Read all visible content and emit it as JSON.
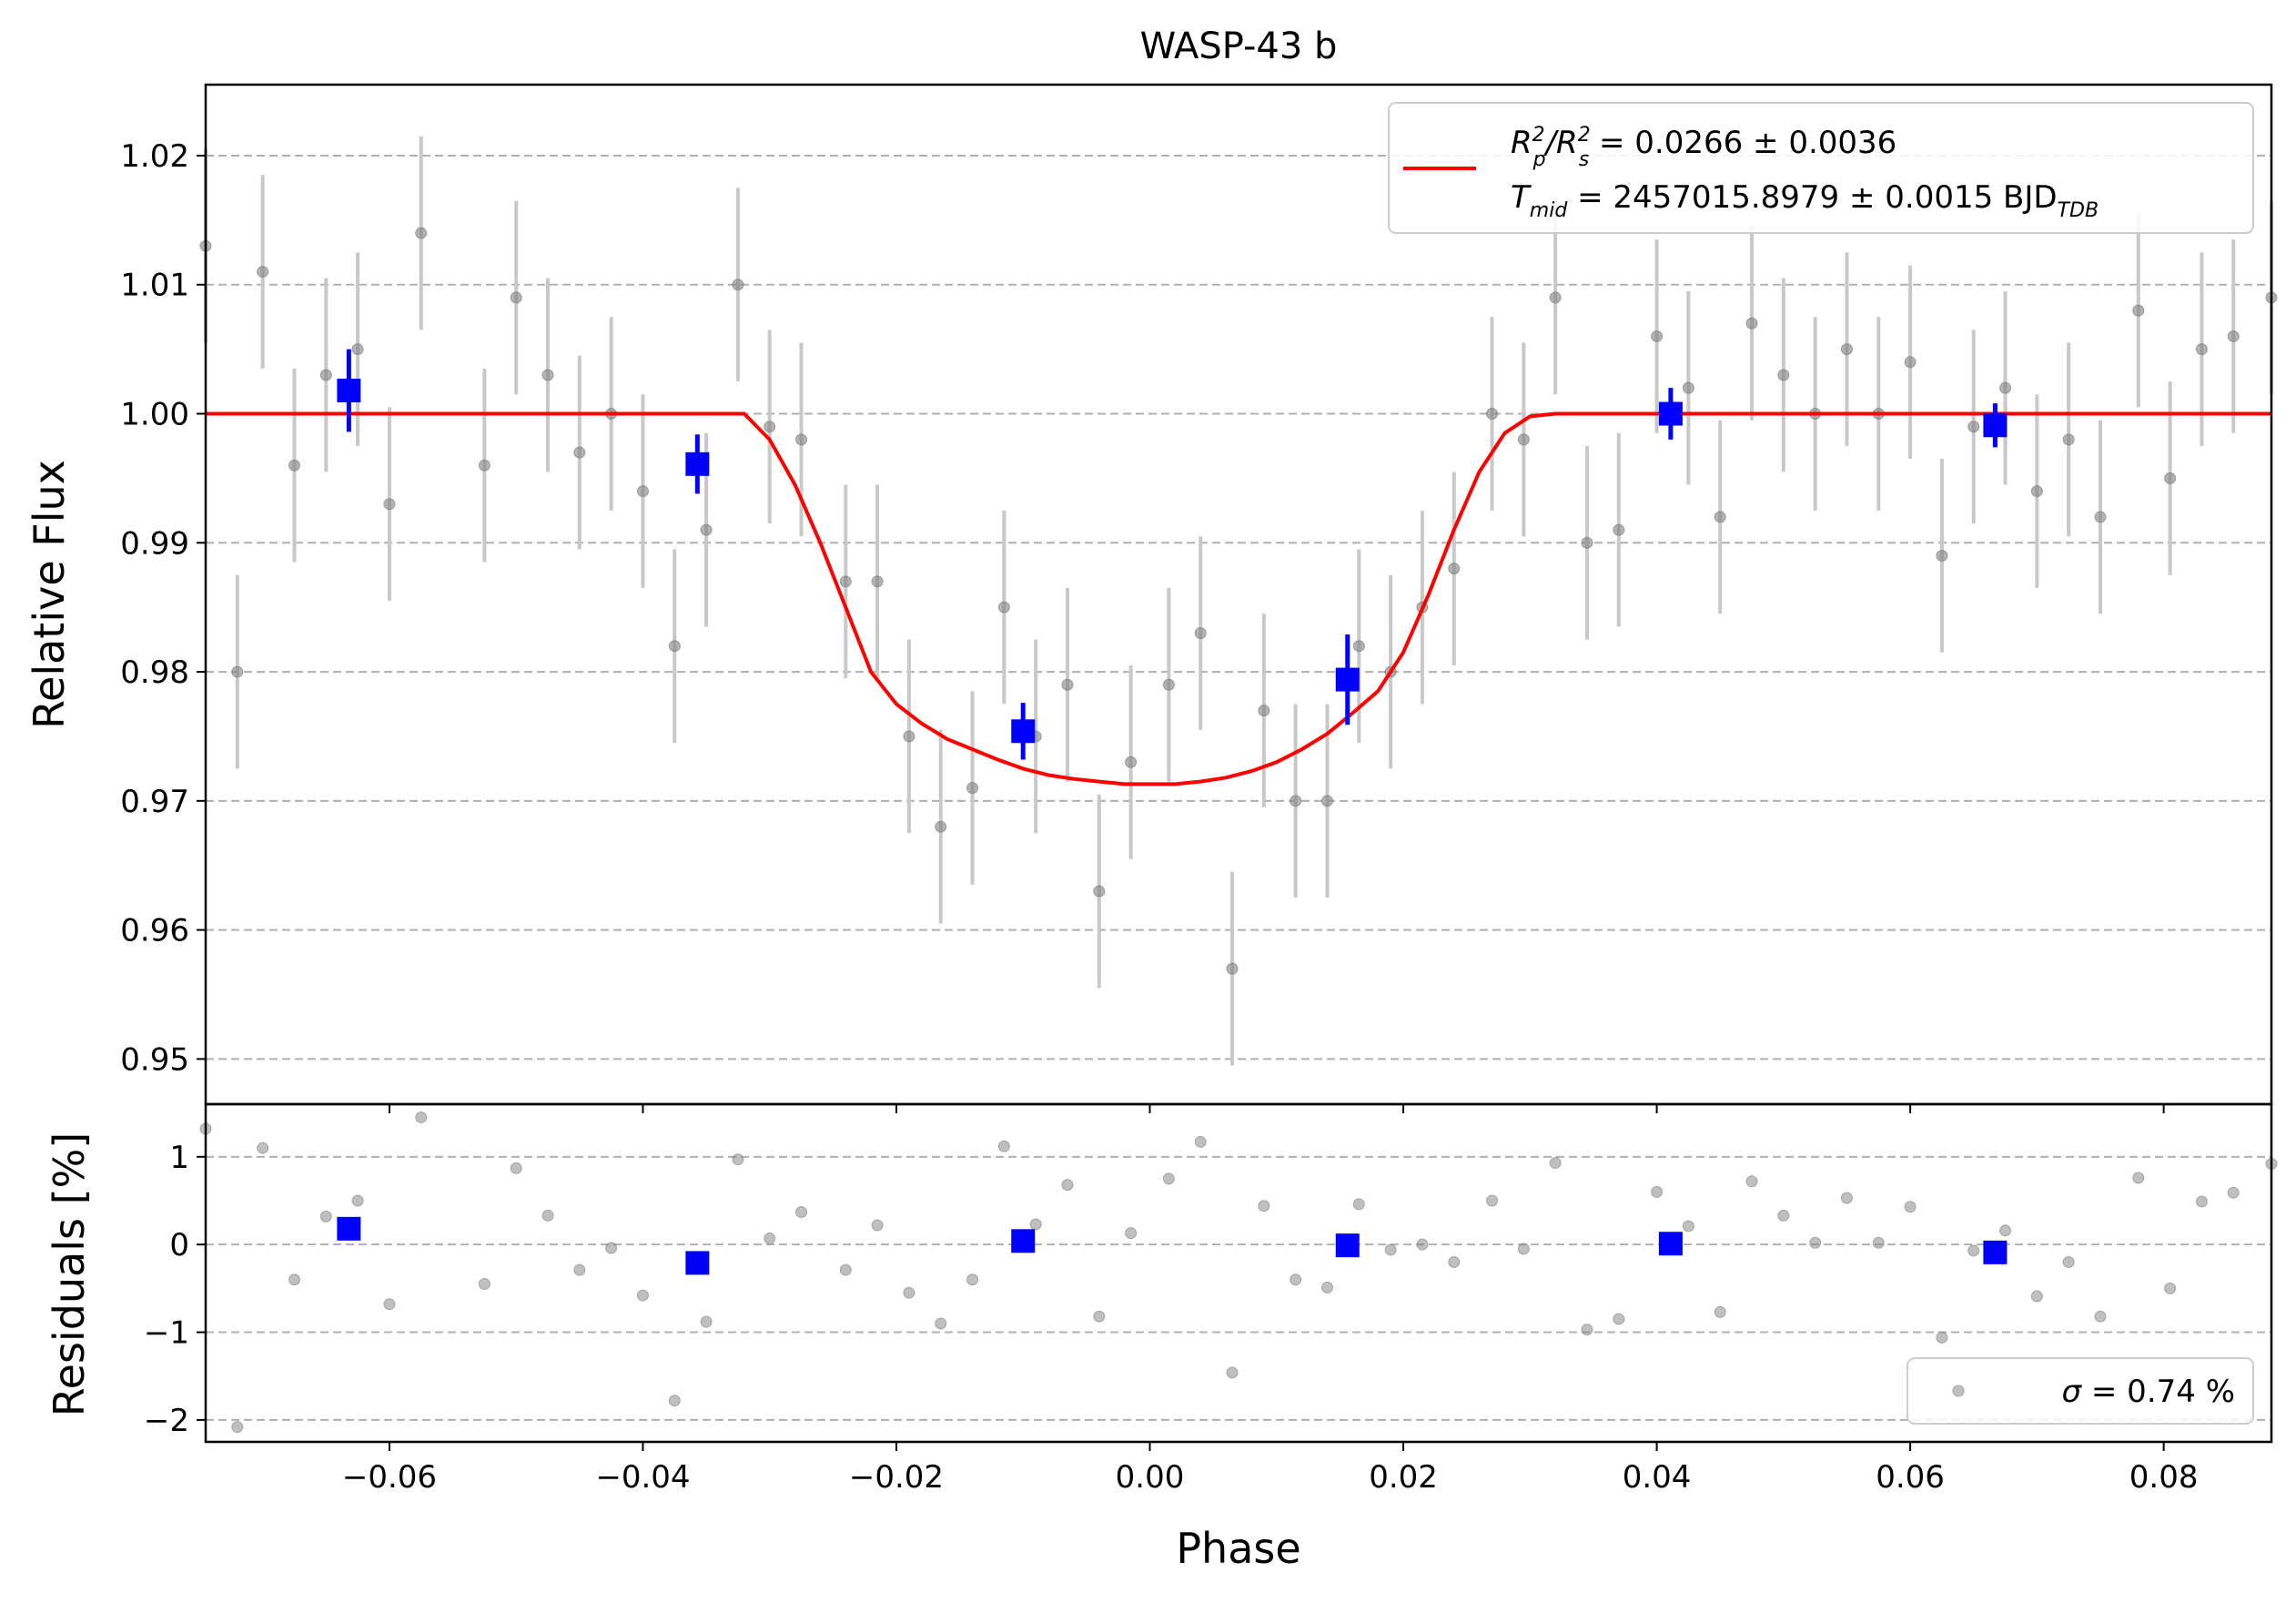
{
  "chart_data": [
    {
      "type": "scatter",
      "title": "WASP-43 b",
      "xlabel": "",
      "ylabel": "Relative Flux",
      "xlim": [
        -0.0745,
        0.0885
      ],
      "ylim": [
        0.9465,
        1.0255
      ],
      "x_ticks": [
        -0.06,
        -0.04,
        -0.02,
        0.0,
        0.02,
        0.04,
        0.06,
        0.08
      ],
      "y_ticks": [
        0.95,
        0.96,
        0.97,
        0.98,
        0.99,
        1.0,
        1.01,
        1.02
      ],
      "y_tick_labels": [
        "0.95",
        "0.96",
        "0.97",
        "0.98",
        "0.99",
        "1.00",
        "1.01",
        "1.02"
      ],
      "grid": "horizontal dashed",
      "legend_position": "upper right",
      "series": [
        {
          "kind": "data",
          "color": "#808080",
          "x": [
            -0.0745,
            -0.072,
            -0.07,
            -0.0675,
            -0.065,
            -0.0625,
            -0.06,
            -0.0575,
            -0.0525,
            -0.05,
            -0.0475,
            -0.045,
            -0.0425,
            -0.04,
            -0.0375,
            -0.035,
            -0.0325,
            -0.03,
            -0.0275,
            -0.024,
            -0.0215,
            -0.019,
            -0.0165,
            -0.014,
            -0.0115,
            -0.009,
            -0.0065,
            -0.004,
            -0.0015,
            0.0015,
            0.004,
            0.0065,
            0.009,
            0.0115,
            0.014,
            0.0165,
            0.019,
            0.0215,
            0.024,
            0.027,
            0.0295,
            0.032,
            0.0345,
            0.037,
            0.04,
            0.0425,
            0.045,
            0.0475,
            0.05,
            0.0525,
            0.055,
            0.0575,
            0.06,
            0.0625,
            0.065,
            0.0675,
            0.07,
            0.0725,
            0.075,
            0.078,
            0.0805,
            0.083,
            0.0855,
            0.0885
          ],
          "y": [
            1.013,
            0.98,
            1.011,
            0.996,
            1.003,
            1.005,
            0.993,
            1.014,
            0.996,
            1.009,
            1.003,
            0.997,
            1.0,
            0.994,
            0.982,
            0.991,
            1.01,
            0.999,
            0.998,
            0.987,
            0.987,
            0.975,
            0.968,
            0.971,
            0.985,
            0.975,
            0.979,
            0.963,
            0.973,
            0.979,
            0.983,
            0.957,
            0.977,
            0.97,
            0.97,
            0.982,
            0.98,
            0.985,
            0.988,
            1.0,
            0.998,
            1.009,
            0.99,
            0.991,
            1.006,
            1.002,
            0.992,
            1.007,
            1.003,
            1.0,
            1.005,
            1.0,
            1.004,
            0.989,
            0.999,
            1.002,
            0.994,
            0.998,
            0.992,
            1.008,
            0.995,
            1.005,
            1.006,
            1.009
          ],
          "error": 0.0075
        },
        {
          "kind": "binned",
          "color": "#0000ff",
          "x": [
            -0.0632,
            -0.0357,
            -0.01,
            0.0156,
            0.0411,
            0.0667
          ],
          "y": [
            1.0018,
            0.9961,
            0.9754,
            0.9794,
            1.0,
            0.9991
          ],
          "error": [
            0.0032,
            0.0023,
            0.0022,
            0.0035,
            0.002,
            0.0017
          ]
        },
        {
          "kind": "model",
          "color": "#ff0000",
          "x": [
            -0.0745,
            -0.032,
            -0.03,
            -0.028,
            -0.026,
            -0.024,
            -0.022,
            -0.02,
            -0.018,
            -0.016,
            -0.014,
            -0.012,
            -0.01,
            -0.008,
            -0.006,
            -0.004,
            -0.002,
            0.0,
            0.002,
            0.004,
            0.006,
            0.008,
            0.01,
            0.012,
            0.014,
            0.016,
            0.018,
            0.02,
            0.022,
            0.024,
            0.026,
            0.028,
            0.03,
            0.032,
            0.0885
          ],
          "y": [
            1.0,
            1.0,
            0.998,
            0.9945,
            0.99,
            0.985,
            0.98,
            0.9775,
            0.976,
            0.9748,
            0.974,
            0.9732,
            0.9725,
            0.972,
            0.9717,
            0.9715,
            0.9713,
            0.9713,
            0.9713,
            0.9715,
            0.9718,
            0.9723,
            0.973,
            0.974,
            0.9752,
            0.9768,
            0.9785,
            0.9815,
            0.986,
            0.991,
            0.9955,
            0.9985,
            0.9998,
            1.0,
            1.0
          ]
        }
      ],
      "legend": {
        "line1": {
          "main": "R",
          "sub1": "p",
          "sup1": "2",
          "mid": "/R",
          "sub2": "s",
          "sup2": "2",
          "tail": " = 0.0266 ± 0.0036"
        },
        "line2": {
          "main": "T",
          "sub": "mid",
          "tail": " = 2457015.8979 ± 0.0015 BJD",
          "unit_sub": "TDB"
        }
      }
    },
    {
      "type": "scatter",
      "xlabel": "Phase",
      "ylabel": "Residuals [%]",
      "xlim": [
        -0.0745,
        0.0885
      ],
      "ylim": [
        -2.25,
        1.6
      ],
      "x_ticks": [
        -0.06,
        -0.04,
        -0.02,
        0.0,
        0.02,
        0.04,
        0.06,
        0.08
      ],
      "x_tick_labels": [
        "−0.06",
        "−0.04",
        "−0.02",
        "0.00",
        "0.02",
        "0.04",
        "0.06",
        "0.08"
      ],
      "y_ticks": [
        -2,
        -1,
        0,
        1
      ],
      "y_tick_labels": [
        "−2",
        "−1",
        "0",
        "1"
      ],
      "grid": "horizontal dashed",
      "legend_position": "lower right",
      "series": [
        {
          "kind": "residuals",
          "color": "#808080",
          "x": [
            -0.0745,
            -0.072,
            -0.07,
            -0.0675,
            -0.065,
            -0.0625,
            -0.06,
            -0.0575,
            -0.0525,
            -0.05,
            -0.0475,
            -0.045,
            -0.0425,
            -0.04,
            -0.0375,
            -0.035,
            -0.0325,
            -0.03,
            -0.0275,
            -0.024,
            -0.0215,
            -0.019,
            -0.0165,
            -0.014,
            -0.0115,
            -0.009,
            -0.0065,
            -0.004,
            -0.0015,
            0.0015,
            0.004,
            0.0065,
            0.009,
            0.0115,
            0.014,
            0.0165,
            0.019,
            0.0215,
            0.024,
            0.027,
            0.0295,
            0.032,
            0.0345,
            0.037,
            0.04,
            0.0425,
            0.045,
            0.0475,
            0.05,
            0.0525,
            0.055,
            0.0575,
            0.06,
            0.0625,
            0.065,
            0.0675,
            0.07,
            0.0725,
            0.075,
            0.078,
            0.0805,
            0.083,
            0.0855,
            0.0885
          ],
          "y": [
            1.32,
            -2.08,
            1.1,
            -0.4,
            0.32,
            0.5,
            -0.68,
            1.45,
            -0.45,
            0.87,
            0.33,
            -0.29,
            -0.04,
            -0.58,
            -1.78,
            -0.88,
            0.97,
            0.07,
            0.37,
            -0.29,
            0.22,
            -0.55,
            -0.9,
            -0.4,
            1.12,
            0.23,
            0.68,
            -0.82,
            0.13,
            0.75,
            1.17,
            -1.46,
            0.44,
            -0.4,
            -0.49,
            0.46,
            -0.06,
            0.0,
            -0.2,
            0.5,
            -0.05,
            0.93,
            -0.97,
            -0.85,
            0.6,
            0.21,
            -0.77,
            0.72,
            0.33,
            0.02,
            0.53,
            0.02,
            0.43,
            -1.06,
            -0.07,
            0.16,
            -0.59,
            -0.2,
            -0.82,
            0.76,
            -0.5,
            0.49,
            0.59,
            0.92
          ]
        },
        {
          "kind": "binned",
          "color": "#0000ff",
          "x": [
            -0.0632,
            -0.0357,
            -0.01,
            0.0156,
            0.0411,
            0.0667
          ],
          "y": [
            0.18,
            -0.21,
            0.04,
            -0.01,
            0.01,
            -0.09
          ]
        }
      ],
      "legend": {
        "sigma_symbol": "σ",
        "tail": " = 0.74 %"
      }
    }
  ]
}
